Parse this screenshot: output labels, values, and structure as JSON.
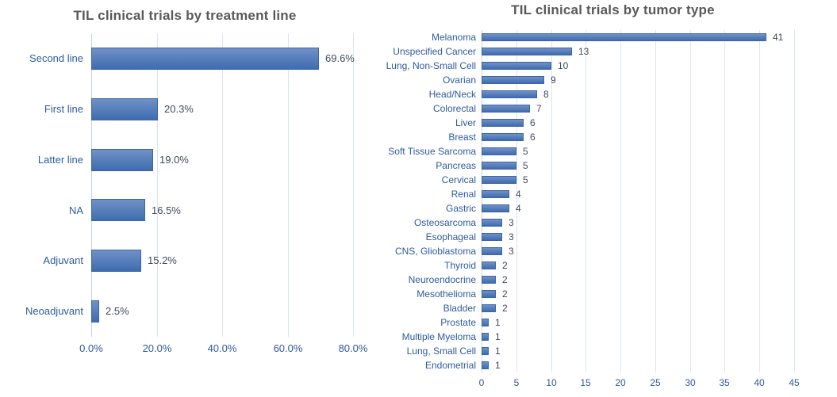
{
  "page": {
    "background": "#ffffff"
  },
  "colors": {
    "bar_gradient_top": "#7191c5",
    "bar_gradient_bottom": "#3e6cb0",
    "bar_border": "#3a66a8",
    "gridline": "#dbe5f1",
    "axis_line": "#c3d4e8",
    "title_text": "#595959",
    "category_text": "#2e5b9e",
    "tick_text": "#2e5b9e",
    "value_text": "#404a5e"
  },
  "chart_data": [
    {
      "type": "bar",
      "orientation": "horizontal",
      "title": "TIL clinical trials by treatment line",
      "categories": [
        "Second line",
        "First line",
        "Latter line",
        "NA",
        "Adjuvant",
        "Neoadjuvant"
      ],
      "values": [
        69.6,
        20.3,
        19.0,
        16.5,
        15.2,
        2.5
      ],
      "value_labels": [
        "69.6%",
        "20.3%",
        "19.0%",
        "16.5%",
        "15.2%",
        "2.5%"
      ],
      "xlabel": "",
      "ylabel": "",
      "xlim": [
        0,
        86
      ],
      "xticks": {
        "values": [
          0,
          20,
          40,
          60,
          80
        ],
        "labels": [
          "0.0%",
          "20.0%",
          "40.0%",
          "60.0%",
          "80.0%"
        ]
      },
      "grid": "vertical",
      "legend": "none"
    },
    {
      "type": "bar",
      "orientation": "horizontal",
      "title": "TIL clinical trials by tumor type",
      "categories": [
        "Melanoma",
        "Unspecified Cancer",
        "Lung, Non-Small Cell",
        "Ovarian",
        "Head/Neck",
        "Colorectal",
        "Liver",
        "Breast",
        "Soft Tissue Sarcoma",
        "Pancreas",
        "Cervical",
        "Renal",
        "Gastric",
        "Osteosarcoma",
        "Esophageal",
        "CNS, Glioblastoma",
        "Thyroid",
        "Neuroendocrine",
        "Mesothelioma",
        "Bladder",
        "Prostate",
        "Multiple Myeloma",
        "Lung, Small Cell",
        "Endometrial"
      ],
      "values": [
        41,
        13,
        10,
        9,
        8,
        7,
        6,
        6,
        5,
        5,
        5,
        4,
        4,
        3,
        3,
        3,
        2,
        2,
        2,
        2,
        1,
        1,
        1,
        1
      ],
      "value_labels": [
        "41",
        "13",
        "10",
        "9",
        "8",
        "7",
        "6",
        "6",
        "5",
        "5",
        "5",
        "4",
        "4",
        "3",
        "3",
        "3",
        "2",
        "2",
        "2",
        "2",
        "1",
        "1",
        "1",
        "1"
      ],
      "xlabel": "",
      "ylabel": "",
      "xlim": [
        0,
        45
      ],
      "xticks": {
        "values": [
          0,
          5,
          10,
          15,
          20,
          25,
          30,
          35,
          40,
          45
        ],
        "labels": [
          "0",
          "5",
          "10",
          "15",
          "20",
          "25",
          "30",
          "35",
          "40",
          "45"
        ]
      },
      "grid": "vertical",
      "legend": "none"
    }
  ]
}
